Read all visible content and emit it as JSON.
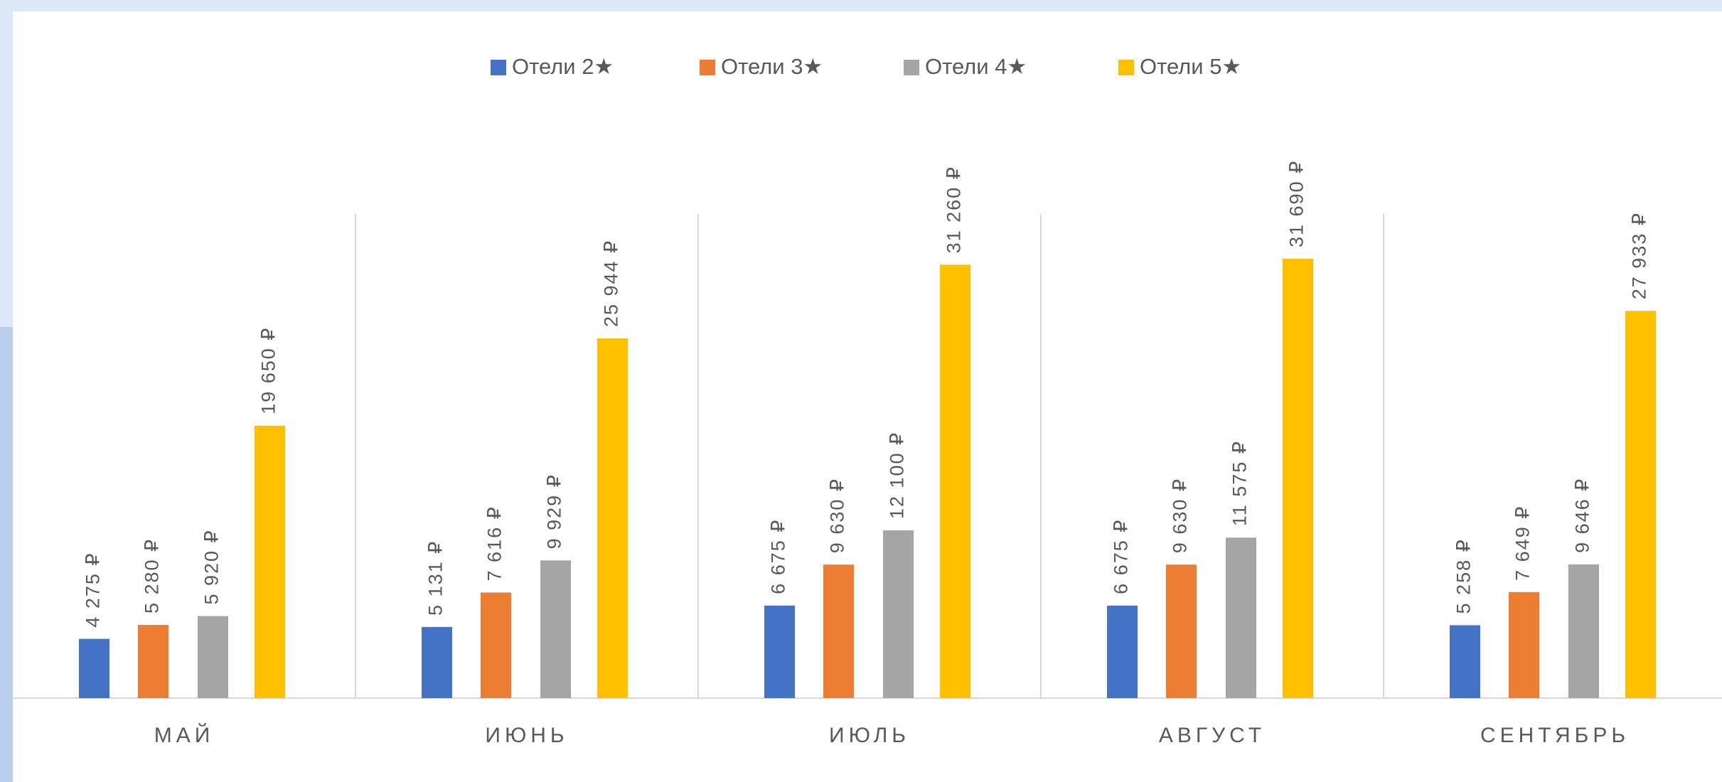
{
  "chart_data": {
    "type": "bar",
    "categories": [
      "МАЙ",
      "ИЮНЬ",
      "ИЮЛЬ",
      "АВГУСТ",
      "СЕНТЯБРЬ"
    ],
    "series": [
      {
        "name": "Отели 2★",
        "color": "#4472c4",
        "values": [
          4275,
          5131,
          6675,
          6675,
          5258
        ],
        "value_labels": [
          "4 275 ₽",
          "5 131 ₽",
          "6 675 ₽",
          "6 675 ₽",
          "5 258 ₽"
        ]
      },
      {
        "name": "Отели 3★",
        "color": "#ed7d31",
        "values": [
          5280,
          7616,
          9630,
          9630,
          7649
        ],
        "value_labels": [
          "5 280 ₽",
          "7 616 ₽",
          "9 630 ₽",
          "9 630 ₽",
          "7 649 ₽"
        ]
      },
      {
        "name": "Отели 4★",
        "color": "#a5a5a5",
        "values": [
          5920,
          9929,
          12100,
          11575,
          9646
        ],
        "value_labels": [
          "5 920 ₽",
          "9 929 ₽",
          "12 100 ₽",
          "11 575 ₽",
          "9 646 ₽"
        ]
      },
      {
        "name": "Отели 5★",
        "color": "#ffc000",
        "values": [
          19650,
          25944,
          31260,
          31690,
          27933
        ],
        "value_labels": [
          "19 650 ₽",
          "25 944 ₽",
          "31 260 ₽",
          "31 690 ₽",
          "27 933 ₽"
        ]
      }
    ],
    "legend": "top"
  }
}
